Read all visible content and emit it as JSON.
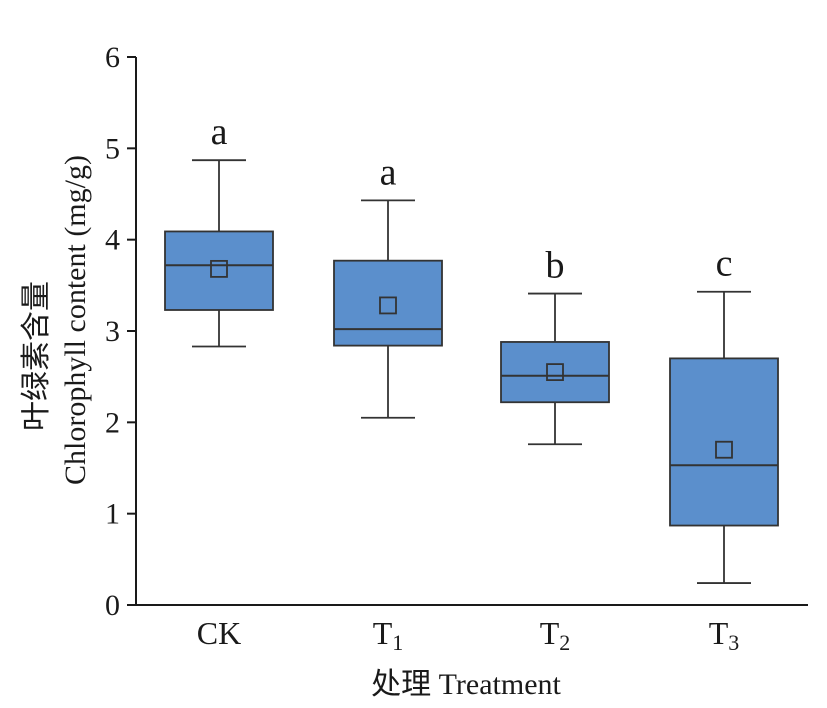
{
  "chart_data": {
    "type": "box",
    "categories": [
      "CK",
      "T1",
      "T2",
      "T3"
    ],
    "category_labels": [
      {
        "main": "CK",
        "sub": ""
      },
      {
        "main": "T",
        "sub": "1"
      },
      {
        "main": "T",
        "sub": "2"
      },
      {
        "main": "T",
        "sub": "3"
      }
    ],
    "boxes": [
      {
        "min": 2.83,
        "q1": 3.23,
        "median": 3.72,
        "q3": 4.09,
        "max": 4.87,
        "mean": 3.68,
        "significance": "a"
      },
      {
        "min": 2.05,
        "q1": 2.84,
        "median": 3.02,
        "q3": 3.77,
        "max": 4.43,
        "mean": 3.28,
        "significance": "a"
      },
      {
        "min": 1.76,
        "q1": 2.22,
        "median": 2.51,
        "q3": 2.88,
        "max": 3.41,
        "mean": 2.55,
        "significance": "b"
      },
      {
        "min": 0.24,
        "q1": 0.87,
        "median": 1.53,
        "q3": 2.7,
        "max": 3.43,
        "mean": 1.7,
        "significance": "c"
      }
    ],
    "ylim": [
      0,
      6
    ],
    "yticks": [
      "0",
      "1",
      "2",
      "3",
      "4",
      "5",
      "6"
    ],
    "xlabel": "处理 Treatment",
    "ylabel_cn": "叶绿素含量",
    "ylabel_en": "Chlorophyll content (mg/g)",
    "colors": {
      "box_fill": "#5b8fcc",
      "box_stroke": "#333333",
      "axis": "#1a1a1a"
    },
    "grid": false
  }
}
